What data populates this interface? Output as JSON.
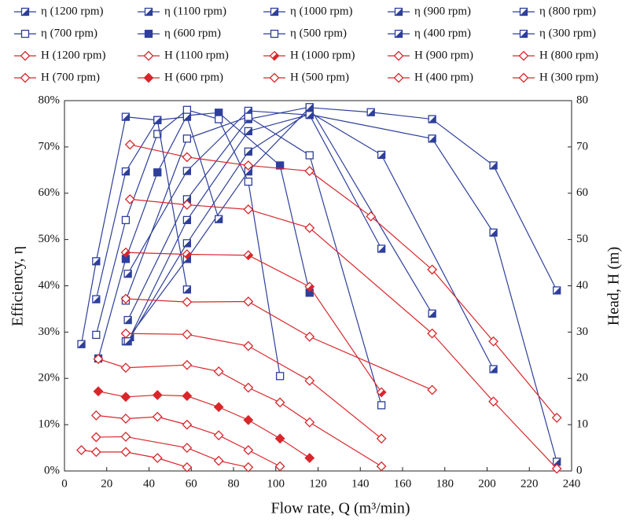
{
  "chart_data": {
    "type": "line",
    "xlabel": "Flow rate, Q (m³/min)",
    "ylabel": "Efficiency, η",
    "y2label": "Head, H (m)",
    "xlim": [
      0,
      240
    ],
    "xticks": [
      0,
      20,
      40,
      60,
      80,
      100,
      120,
      140,
      160,
      180,
      200,
      220,
      240
    ],
    "ylim": [
      0,
      80
    ],
    "yticks": [
      {
        "value": 0,
        "label": "0%"
      },
      {
        "value": 10,
        "label": "10%"
      },
      {
        "value": 20,
        "label": "20%"
      },
      {
        "value": 30,
        "label": "30%"
      },
      {
        "value": 40,
        "label": "40%"
      },
      {
        "value": 50,
        "label": "50%"
      },
      {
        "value": 60,
        "label": "60%"
      },
      {
        "value": 70,
        "label": "70%"
      },
      {
        "value": 80,
        "label": "80%"
      }
    ],
    "y2lim": [
      0,
      80
    ],
    "y2ticks": [
      0,
      10,
      20,
      30,
      40,
      50,
      60,
      70,
      80
    ],
    "series": [
      {
        "name": "η (1200 rpm)",
        "color": "#2e3f9a",
        "marker": "half",
        "x": [
          29,
          58,
          87,
          116,
          145,
          174,
          203,
          233
        ],
        "values": [
          28,
          45.8,
          64.7,
          78.5,
          77.5,
          76,
          66,
          39
        ]
      },
      {
        "name": "η (1100 rpm)",
        "color": "#2e3f9a",
        "marker": "half",
        "x": [
          31,
          58,
          87,
          116,
          174,
          203,
          233
        ],
        "values": [
          28.9,
          54.2,
          73.4,
          77,
          71.8,
          51.5,
          2
        ]
      },
      {
        "name": "η (1000 rpm)",
        "color": "#2e3f9a",
        "marker": "half",
        "x": [
          30,
          58,
          87,
          116,
          150,
          203
        ],
        "values": [
          28,
          49.2,
          69,
          77.5,
          68.3,
          22
        ]
      },
      {
        "name": "η (900 rpm)",
        "color": "#2e3f9a",
        "marker": "half",
        "x": [
          30,
          58,
          87,
          116,
          174
        ],
        "values": [
          32.6,
          58.7,
          76,
          78.6,
          34
        ]
      },
      {
        "name": "η (800 rpm)",
        "color": "#2e3f9a",
        "marker": "half",
        "x": [
          30,
          58,
          87,
          116,
          150
        ],
        "values": [
          42.6,
          64.8,
          77.8,
          76.9,
          48
        ]
      },
      {
        "name": "η (700 rpm)",
        "color": "#2e3f9a",
        "marker": "open",
        "x": [
          29,
          58,
          87,
          116,
          150
        ],
        "values": [
          36.8,
          71.8,
          76.5,
          68.2,
          14.2
        ]
      },
      {
        "name": "η (600 rpm)",
        "color": "#2e3f9a",
        "marker": "filled",
        "x": [
          16,
          29,
          44,
          58,
          73,
          102,
          116
        ],
        "values": [
          24.3,
          45.8,
          64.5,
          76.8,
          77.4,
          66,
          38.5
        ]
      },
      {
        "name": "η (500 rpm)",
        "color": "#2e3f9a",
        "marker": "open",
        "x": [
          15,
          29,
          44,
          58,
          73,
          87,
          102
        ],
        "values": [
          29.4,
          54.2,
          72.8,
          78,
          76,
          62.5,
          20.5
        ]
      },
      {
        "name": "η (400 rpm)",
        "color": "#2e3f9a",
        "marker": "half",
        "x": [
          15,
          29,
          44,
          58,
          73
        ],
        "values": [
          37.1,
          64.7,
          75.8,
          76.5,
          54.4
        ]
      },
      {
        "name": "η (300 rpm)",
        "color": "#2e3f9a",
        "marker": "half",
        "x": [
          8,
          15,
          29,
          44,
          58
        ],
        "values": [
          27.4,
          45.3,
          76.5,
          75.8,
          39.2
        ]
      },
      {
        "name": "H (1200 rpm)",
        "color": "#d9262b",
        "marker": "open",
        "axis": "y2",
        "x": [
          31,
          58,
          87,
          116,
          145,
          174,
          203,
          233
        ],
        "values": [
          70.5,
          67.8,
          66,
          64.8,
          55,
          43.5,
          28,
          11.5
        ]
      },
      {
        "name": "H (1100 rpm)",
        "color": "#d9262b",
        "marker": "open",
        "axis": "y2",
        "x": [
          31,
          58,
          87,
          116,
          174,
          203,
          233
        ],
        "values": [
          58.7,
          57.5,
          56.5,
          52.5,
          29.7,
          15,
          0.5
        ]
      },
      {
        "name": "H (1000 rpm)",
        "color": "#d9262b",
        "marker": "half",
        "axis": "y2",
        "x": [
          29,
          58,
          87,
          116,
          150
        ],
        "values": [
          47.2,
          46.8,
          46.6,
          39.8,
          17
        ]
      },
      {
        "name": "H (900 rpm)",
        "color": "#d9262b",
        "marker": "open",
        "axis": "y2",
        "x": [
          29,
          58,
          87,
          116,
          174
        ],
        "values": [
          37.2,
          36.5,
          36.6,
          29,
          17.5
        ]
      },
      {
        "name": "H (800 rpm)",
        "color": "#d9262b",
        "marker": "open",
        "axis": "y2",
        "x": [
          29,
          58,
          87,
          116,
          150
        ],
        "values": [
          29.7,
          29.5,
          27,
          19.5,
          7
        ]
      },
      {
        "name": "H (700 rpm)",
        "color": "#d9262b",
        "marker": "open",
        "axis": "y2",
        "x": [
          16,
          29,
          58,
          73,
          87,
          102,
          116,
          150
        ],
        "values": [
          24.2,
          22.3,
          22.9,
          21.5,
          18,
          14.8,
          10.5,
          1
        ]
      },
      {
        "name": "H (600 rpm)",
        "color": "#d9262b",
        "marker": "filled",
        "axis": "y2",
        "x": [
          16,
          29,
          44,
          58,
          73,
          87,
          102,
          116
        ],
        "values": [
          17.2,
          16,
          16.4,
          16.2,
          13.8,
          11,
          7,
          2.8
        ]
      },
      {
        "name": "H (500 rpm)",
        "color": "#d9262b",
        "marker": "open",
        "axis": "y2",
        "x": [
          15,
          29,
          44,
          58,
          73,
          87,
          102
        ],
        "values": [
          12,
          11.3,
          11.7,
          10,
          7.7,
          4.5,
          1
        ]
      },
      {
        "name": "H (400 rpm)",
        "color": "#d9262b",
        "marker": "open",
        "axis": "y2",
        "x": [
          15,
          29,
          58,
          73,
          87
        ],
        "values": [
          7.3,
          7.4,
          5,
          2.2,
          0.8
        ]
      },
      {
        "name": "H (300 rpm)",
        "color": "#d9262b",
        "marker": "open",
        "axis": "y2",
        "x": [
          8,
          15,
          29,
          44,
          58
        ],
        "values": [
          4.5,
          4.1,
          4.1,
          2.8,
          0.8
        ]
      }
    ]
  }
}
